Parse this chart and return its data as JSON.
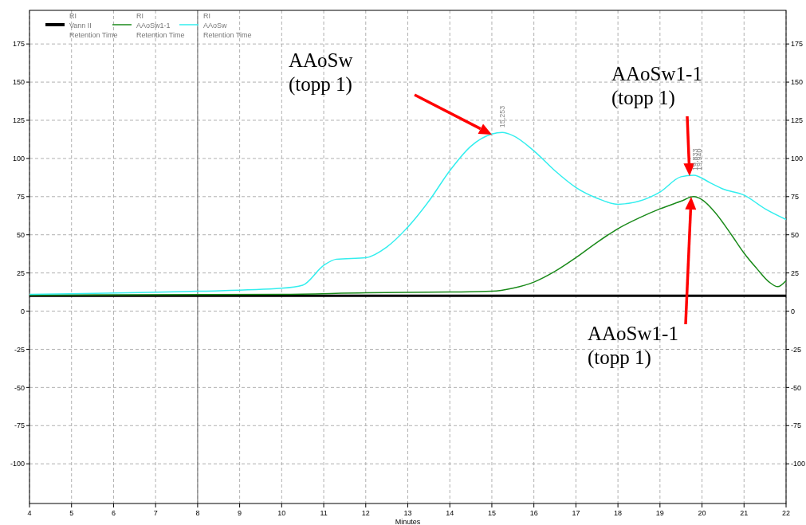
{
  "chart_data": {
    "type": "line",
    "xlabel": "Minutes",
    "x": [
      4,
      8,
      10,
      10.5,
      11,
      11.3,
      12,
      12.5,
      13,
      13.5,
      14,
      14.5,
      15,
      15.25,
      15.5,
      16,
      16.5,
      17,
      17.5,
      18,
      18.5,
      19,
      19.5,
      19.8,
      20.2,
      20.5,
      21,
      21.5,
      22
    ],
    "series": [
      {
        "name": "RI\nVann II\nRetention Time",
        "color": "#000000",
        "x": [
          4,
          22
        ],
        "values": [
          10,
          10
        ]
      },
      {
        "name": "RI\nAAoSw1-1\nRetention Time",
        "color": "#1a8a1a",
        "x": [
          4,
          10,
          12,
          14,
          15,
          15.5,
          16,
          16.5,
          17,
          17.5,
          18,
          18.5,
          19,
          19.5,
          19.8,
          20,
          20.3,
          20.7,
          21,
          21.3,
          21.6,
          21.8,
          22
        ],
        "values": [
          10.5,
          11,
          12,
          12.5,
          13,
          15,
          19,
          26,
          35,
          45,
          54,
          61,
          67,
          72,
          75,
          73,
          65,
          50,
          38,
          28,
          19,
          16,
          20
        ]
      },
      {
        "name": "RI\nAAoSw\nRetention Time",
        "color": "#33eeee",
        "values": [
          11,
          13,
          15,
          17,
          30,
          34,
          35,
          42,
          55,
          72,
          92,
          108,
          116,
          117,
          115,
          105,
          92,
          81,
          74,
          70,
          72,
          78,
          88,
          89,
          84,
          80,
          76,
          67,
          60
        ]
      }
    ],
    "xlim": [
      4,
      22
    ],
    "xticks": [
      4,
      5,
      6,
      7,
      8,
      9,
      10,
      11,
      12,
      13,
      14,
      15,
      16,
      17,
      18,
      19,
      20,
      21,
      22
    ],
    "ylim": [
      -126,
      197
    ],
    "yticks": [
      -100,
      -75,
      -50,
      -25,
      0,
      25,
      50,
      75,
      100,
      125,
      150,
      175
    ],
    "y2lim": [
      -126,
      197
    ],
    "y2ticks": [
      -100,
      -75,
      -50,
      -25,
      0,
      25,
      50,
      75,
      100,
      125,
      150,
      175
    ],
    "grid": true,
    "legend": "top left",
    "line_style": "solid",
    "marker": "none",
    "ref_lines": [
      {
        "axis": "x",
        "value": 8,
        "color": "#808080"
      }
    ],
    "annotations": [
      "AAoSw\n(topp 1)",
      "AAoSw1-1\n(topp 1)",
      "AAoSw1-1\n(topp 1)",
      {
        "text": "15,253",
        "x": 15.253,
        "y": 117
      },
      {
        "text": "19,833",
        "x": 19.833,
        "y": 89
      },
      {
        "text": "19,940",
        "x": 19.94,
        "y": 89
      }
    ]
  }
}
